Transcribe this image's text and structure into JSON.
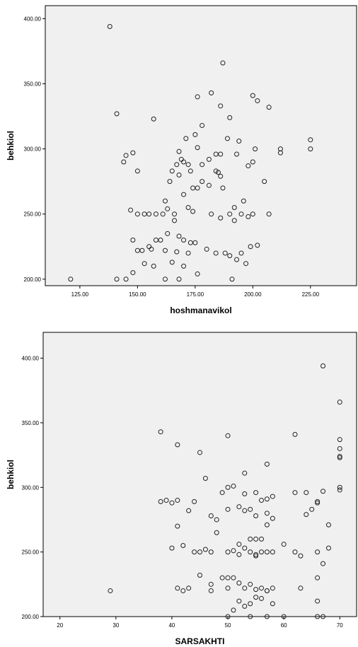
{
  "chart_data": [
    {
      "type": "scatter",
      "xlabel": "hoshmanavikol",
      "ylabel": "behkiol",
      "xlim": [
        110,
        245
      ],
      "ylim": [
        195,
        410
      ],
      "x_ticks": [
        "125.00",
        "150.00",
        "175.00",
        "200.00",
        "225.00"
      ],
      "y_ticks": [
        "200.00",
        "250.00",
        "300.00",
        "350.00",
        "400.00"
      ],
      "grid": false,
      "background": "#f0f0f0",
      "marker_color": "#222222",
      "points": [
        [
          138,
          394
        ],
        [
          187,
          366
        ],
        [
          182,
          343
        ],
        [
          176,
          340
        ],
        [
          200,
          341
        ],
        [
          202,
          337
        ],
        [
          186,
          333
        ],
        [
          141,
          327
        ],
        [
          207,
          332
        ],
        [
          190,
          324
        ],
        [
          157,
          323
        ],
        [
          178,
          318
        ],
        [
          175,
          311
        ],
        [
          171,
          308
        ],
        [
          189,
          308
        ],
        [
          194,
          306
        ],
        [
          225,
          307
        ],
        [
          145,
          295
        ],
        [
          148,
          297
        ],
        [
          150,
          283
        ],
        [
          144,
          290
        ],
        [
          168,
          298
        ],
        [
          169,
          292
        ],
        [
          170,
          290
        ],
        [
          172,
          288
        ],
        [
          176,
          301
        ],
        [
          181,
          292
        ],
        [
          184,
          296
        ],
        [
          186,
          296
        ],
        [
          193,
          296
        ],
        [
          201,
          300
        ],
        [
          212,
          300
        ],
        [
          212,
          297
        ],
        [
          225,
          300
        ],
        [
          165,
          283
        ],
        [
          167,
          288
        ],
        [
          173,
          283
        ],
        [
          178,
          288
        ],
        [
          184,
          283
        ],
        [
          186,
          279
        ],
        [
          198,
          287
        ],
        [
          200,
          290
        ],
        [
          205,
          275
        ],
        [
          162,
          260
        ],
        [
          164,
          275
        ],
        [
          168,
          280
        ],
        [
          170,
          265
        ],
        [
          174,
          270
        ],
        [
          176,
          270
        ],
        [
          178,
          275
        ],
        [
          181,
          272
        ],
        [
          185,
          282
        ],
        [
          187,
          270
        ],
        [
          192,
          255
        ],
        [
          196,
          260
        ],
        [
          147,
          253
        ],
        [
          150,
          250
        ],
        [
          153,
          250
        ],
        [
          155,
          250
        ],
        [
          158,
          250
        ],
        [
          161,
          250
        ],
        [
          163,
          254
        ],
        [
          166,
          250
        ],
        [
          172,
          255
        ],
        [
          174,
          252
        ],
        [
          182,
          250
        ],
        [
          186,
          247
        ],
        [
          190,
          250
        ],
        [
          192,
          245
        ],
        [
          195,
          250
        ],
        [
          198,
          248
        ],
        [
          200,
          250
        ],
        [
          207,
          250
        ],
        [
          148,
          230
        ],
        [
          150,
          222
        ],
        [
          152,
          222
        ],
        [
          156,
          223
        ],
        [
          158,
          230
        ],
        [
          160,
          230
        ],
        [
          163,
          235
        ],
        [
          166,
          245
        ],
        [
          168,
          233
        ],
        [
          170,
          230
        ],
        [
          173,
          228
        ],
        [
          175,
          228
        ],
        [
          180,
          223
        ],
        [
          184,
          220
        ],
        [
          188,
          220
        ],
        [
          190,
          218
        ],
        [
          193,
          215
        ],
        [
          195,
          220
        ],
        [
          197,
          212
        ],
        [
          199,
          225
        ],
        [
          202,
          226
        ],
        [
          153,
          212
        ],
        [
          155,
          225
        ],
        [
          157,
          210
        ],
        [
          162,
          222
        ],
        [
          165,
          213
        ],
        [
          167,
          221
        ],
        [
          170,
          210
        ],
        [
          172,
          220
        ],
        [
          148,
          205
        ],
        [
          121,
          200
        ],
        [
          141,
          200
        ],
        [
          145,
          200
        ],
        [
          162,
          200
        ],
        [
          168,
          200
        ],
        [
          176,
          204
        ],
        [
          191,
          200
        ]
      ]
    },
    {
      "type": "scatter",
      "xlabel": "SARSAKHTI",
      "ylabel": "behkiol",
      "xlim": [
        17,
        73
      ],
      "ylim": [
        200,
        420
      ],
      "x_ticks": [
        "20",
        "30",
        "40",
        "50",
        "60",
        "70"
      ],
      "y_ticks": [
        "200.00",
        "250.00",
        "300.00",
        "350.00",
        "400.00"
      ],
      "grid": false,
      "background": "#f0f0f0",
      "marker_color": "#222222",
      "points": [
        [
          67,
          394
        ],
        [
          70,
          366
        ],
        [
          38,
          343
        ],
        [
          62,
          341
        ],
        [
          50,
          340
        ],
        [
          70,
          337
        ],
        [
          41,
          333
        ],
        [
          70,
          330
        ],
        [
          45,
          327
        ],
        [
          70,
          323
        ],
        [
          70,
          324
        ],
        [
          57,
          318
        ],
        [
          53,
          311
        ],
        [
          46,
          307
        ],
        [
          49,
          296
        ],
        [
          50,
          300
        ],
        [
          51,
          301
        ],
        [
          53,
          295
        ],
        [
          55,
          296
        ],
        [
          56,
          290
        ],
        [
          57,
          291
        ],
        [
          58,
          293
        ],
        [
          62,
          296
        ],
        [
          64,
          296
        ],
        [
          66,
          289
        ],
        [
          67,
          297
        ],
        [
          70,
          300
        ],
        [
          70,
          298
        ],
        [
          38,
          289
        ],
        [
          39,
          290
        ],
        [
          40,
          288
        ],
        [
          41,
          290
        ],
        [
          43,
          282
        ],
        [
          44,
          289
        ],
        [
          47,
          278
        ],
        [
          48,
          275
        ],
        [
          50,
          283
        ],
        [
          52,
          285
        ],
        [
          53,
          282
        ],
        [
          54,
          283
        ],
        [
          55,
          278
        ],
        [
          57,
          280
        ],
        [
          58,
          276
        ],
        [
          64,
          279
        ],
        [
          66,
          288
        ],
        [
          68,
          271
        ],
        [
          41,
          270
        ],
        [
          48,
          265
        ],
        [
          52,
          256
        ],
        [
          54,
          260
        ],
        [
          55,
          260
        ],
        [
          56,
          260
        ],
        [
          57,
          271
        ],
        [
          60,
          256
        ],
        [
          40,
          253
        ],
        [
          42,
          255
        ],
        [
          45,
          250
        ],
        [
          47,
          250
        ],
        [
          50,
          250
        ],
        [
          51,
          251
        ],
        [
          53,
          253
        ],
        [
          54,
          250
        ],
        [
          55,
          248
        ],
        [
          56,
          250
        ],
        [
          57,
          250
        ],
        [
          58,
          250
        ],
        [
          62,
          250
        ],
        [
          63,
          247
        ],
        [
          66,
          250
        ],
        [
          67,
          241
        ],
        [
          68,
          253
        ],
        [
          44,
          250
        ],
        [
          46,
          252
        ],
        [
          52,
          248
        ],
        [
          55,
          247
        ],
        [
          45,
          232
        ],
        [
          47,
          225
        ],
        [
          49,
          230
        ],
        [
          50,
          230
        ],
        [
          51,
          230
        ],
        [
          52,
          226
        ],
        [
          53,
          222
        ],
        [
          54,
          225
        ],
        [
          55,
          221
        ],
        [
          56,
          222
        ],
        [
          57,
          220
        ],
        [
          58,
          222
        ],
        [
          63,
          222
        ],
        [
          65,
          283
        ],
        [
          66,
          230
        ],
        [
          41,
          222
        ],
        [
          42,
          220
        ],
        [
          43,
          222
        ],
        [
          47,
          220
        ],
        [
          50,
          222
        ],
        [
          51,
          205
        ],
        [
          52,
          212
        ],
        [
          53,
          208
        ],
        [
          54,
          210
        ],
        [
          55,
          215
        ],
        [
          56,
          214
        ],
        [
          57,
          220
        ],
        [
          58,
          210
        ],
        [
          29,
          220
        ],
        [
          50,
          200
        ],
        [
          54,
          200
        ],
        [
          57,
          200
        ],
        [
          60,
          200
        ],
        [
          66,
          212
        ],
        [
          66,
          200
        ],
        [
          67,
          200
        ]
      ]
    }
  ]
}
